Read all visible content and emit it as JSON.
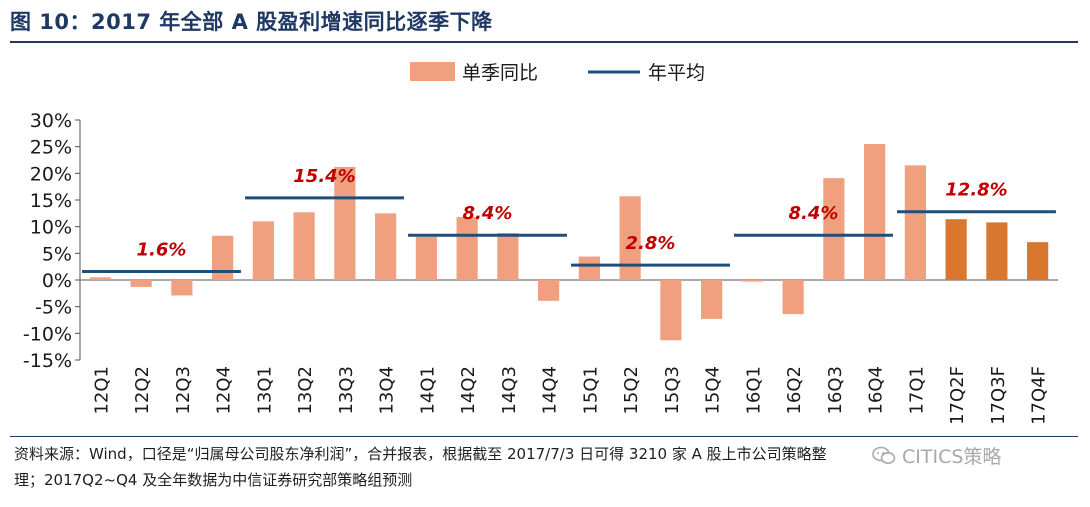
{
  "title": "图 10：2017 年全部 A 股盈利增速同比逐季下降",
  "source_line1": "资料来源：Wind，口径是“归属母公司股东净利润”，合并报表，根据截至 2017/7/3 日可得 3210 家 A 股上市公司策略整",
  "source_line2": "理；2017Q2~Q4 及全年数据为中信证券研究部策略组预测",
  "watermark": "CITICS策略",
  "colors": {
    "bar_actual": "#f0a07e",
    "bar_forecast": "#d9772e",
    "avg_line": "#1f4e79",
    "avg_label": "#c00000",
    "title": "#1f3864"
  },
  "chart_data": {
    "type": "bar",
    "title": "",
    "xlabel": "",
    "ylabel": "",
    "ylim": [
      -15,
      30
    ],
    "yticks": [
      30,
      25,
      20,
      15,
      10,
      5,
      0,
      -5,
      -10,
      -15
    ],
    "ytick_labels": [
      "30%",
      "25%",
      "20%",
      "15%",
      "10%",
      "5%",
      "0%",
      "-5%",
      "-10%",
      "-15%"
    ],
    "legend": [
      {
        "name": "单季同比",
        "kind": "bar"
      },
      {
        "name": "年平均",
        "kind": "line"
      }
    ],
    "legend_position": "top-center",
    "categories": [
      "12Q1",
      "12Q2",
      "12Q3",
      "12Q4",
      "13Q1",
      "13Q2",
      "13Q3",
      "13Q4",
      "14Q1",
      "14Q2",
      "14Q3",
      "14Q4",
      "15Q1",
      "15Q2",
      "15Q3",
      "15Q4",
      "16Q1",
      "16Q2",
      "16Q3",
      "16Q4",
      "17Q1",
      "17Q2F",
      "17Q3F",
      "17Q4F"
    ],
    "series": [
      {
        "name": "单季同比",
        "values": [
          0.5,
          -1.3,
          -2.9,
          8.3,
          11.0,
          12.7,
          21.2,
          12.5,
          8.1,
          11.8,
          8.8,
          -3.9,
          4.4,
          15.7,
          -11.3,
          -7.3,
          -0.3,
          -6.4,
          19.1,
          25.5,
          21.5,
          11.4,
          10.8,
          7.1
        ],
        "forecast_from_index": 21
      }
    ],
    "annual_averages": [
      {
        "year": "2012",
        "value": 1.6,
        "label": "1.6%",
        "from_index": 0,
        "to_index": 3
      },
      {
        "year": "2013",
        "value": 15.4,
        "label": "15.4%",
        "from_index": 4,
        "to_index": 7
      },
      {
        "year": "2014",
        "value": 8.4,
        "label": "8.4%",
        "from_index": 8,
        "to_index": 11
      },
      {
        "year": "2015",
        "value": 2.8,
        "label": "2.8%",
        "from_index": 12,
        "to_index": 15
      },
      {
        "year": "2016",
        "value": 8.4,
        "label": "8.4%",
        "from_index": 16,
        "to_index": 19
      },
      {
        "year": "2017",
        "value": 12.8,
        "label": "12.8%",
        "from_index": 20,
        "to_index": 23
      }
    ]
  }
}
